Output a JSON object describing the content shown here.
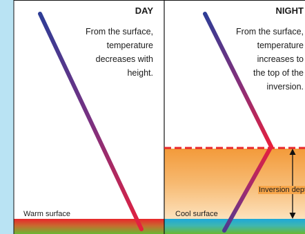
{
  "day": {
    "title": "DAY",
    "description_lines": [
      "From the surface,",
      "temperature",
      "decreases with",
      "height."
    ],
    "surface_label": "Warm surface"
  },
  "night": {
    "title": "NIGHT",
    "description_lines": [
      "From the surface,",
      "temperature",
      "increases to",
      "the top of the",
      "inversion."
    ],
    "surface_label": "Cool surface",
    "depth_label": "Inversion depth"
  },
  "colors": {
    "page_background": "#b9e3f3",
    "line_cold": "#2e3d96",
    "line_warm": "#e8203c",
    "warm_surface_top": "#e8262a",
    "ground_green": "#6ab832",
    "inversion_top": "#e8262a",
    "inversion_orange": "#f39a3a",
    "inversion_pale": "#fcdcb0",
    "cool_surface": "#1da8d8"
  }
}
